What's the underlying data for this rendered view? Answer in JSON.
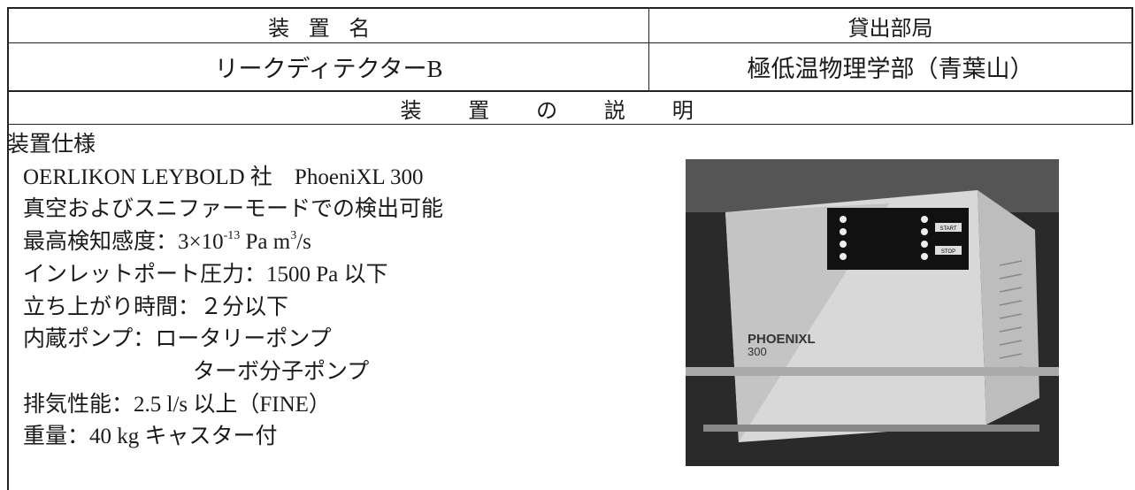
{
  "header": {
    "device_name_label": "装置名",
    "lending_dept_label": "貸出部局"
  },
  "device": {
    "name": "リークディテクターB",
    "department": "極低温物理学部（青葉山）"
  },
  "description_label": "装置の説明",
  "specs": {
    "title": "装置仕様",
    "lines": [
      {
        "text": "OERLIKON LEYBOLD 社　PhoeniXL 300"
      },
      {
        "text": "真空およびスニファーモードでの検出可能"
      },
      {
        "parts": [
          {
            "text": "最高検知感度：3×10"
          },
          {
            "text": "-13",
            "sup": true
          },
          {
            "text": " Pa m"
          },
          {
            "text": "3",
            "sup": true
          },
          {
            "text": "/s"
          }
        ]
      },
      {
        "text": "インレットポート圧力：1500 Pa 以下"
      },
      {
        "text": "立ち上がり時間：２分以下"
      },
      {
        "text": "内蔵ポンプ：ロータリーポンプ"
      },
      {
        "text": "ターボ分子ポンプ",
        "indent": true
      },
      {
        "text": "排気性能：2.5 l/s 以上（FINE）"
      },
      {
        "text": "重量：40 kg キャスター付"
      }
    ]
  },
  "photo": {
    "brand": "PHOENIXL",
    "model": "300",
    "buttons": [
      "START",
      "STOP"
    ]
  }
}
